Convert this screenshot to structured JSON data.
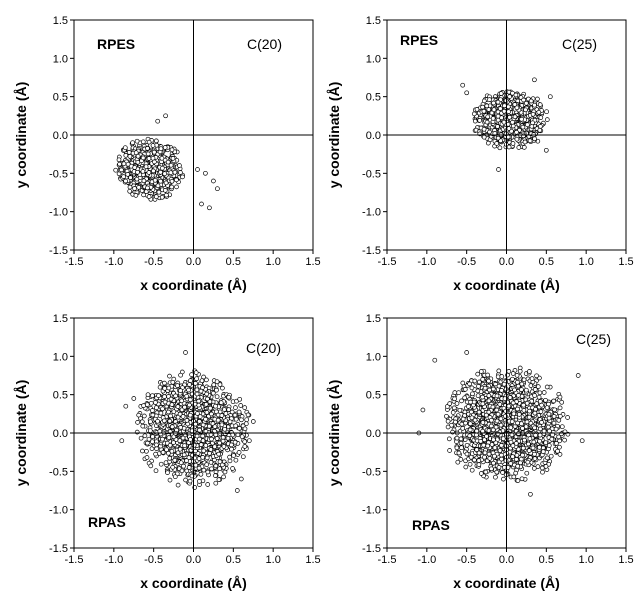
{
  "chart_data": [
    {
      "type": "scatter",
      "xlabel": "x coordinate (Å)",
      "ylabel": "y coordinate (Å)",
      "xlim": [
        -1.5,
        1.5
      ],
      "ylim": [
        -1.5,
        1.5
      ],
      "xticks": [
        "-1.5",
        "-1.0",
        "-0.5",
        "0.0",
        "0.5",
        "1.0",
        "1.5"
      ],
      "yticks": [
        "1.5",
        "1.0",
        "0.5",
        "0.0",
        "-0.5",
        "-1.0",
        "-1.5"
      ],
      "method_label": "RPES",
      "atom_label": "C(20)",
      "cloud": {
        "center": [
          -0.55,
          -0.45
        ],
        "spread": [
          0.18,
          0.17
        ],
        "count": 900
      },
      "outliers": [
        [
          0.1,
          -0.9
        ],
        [
          0.2,
          -0.95
        ],
        [
          0.25,
          -0.6
        ],
        [
          0.3,
          -0.7
        ],
        [
          0.15,
          -0.5
        ],
        [
          -0.35,
          0.25
        ],
        [
          -0.45,
          0.18
        ],
        [
          0.05,
          -0.45
        ]
      ]
    },
    {
      "type": "scatter",
      "xlabel": "x coordinate (Å)",
      "ylabel": "y coordinate (Å)",
      "xlim": [
        -1.5,
        1.5
      ],
      "ylim": [
        -1.5,
        1.5
      ],
      "xticks": [
        "-1.5",
        "-1.0",
        "-0.5",
        "0.0",
        "0.5",
        "1.0",
        "1.5"
      ],
      "yticks": [
        "1.5",
        "1.0",
        "0.5",
        "0.0",
        "-0.5",
        "-1.0",
        "-1.5"
      ],
      "method_label": "RPES",
      "atom_label": "C(25)",
      "cloud": {
        "center": [
          0.05,
          0.2
        ],
        "spread": [
          0.2,
          0.17
        ],
        "count": 1100
      },
      "outliers": [
        [
          -0.55,
          0.65
        ],
        [
          -0.5,
          0.55
        ],
        [
          0.35,
          0.72
        ],
        [
          0.5,
          -0.2
        ],
        [
          -0.1,
          -0.45
        ],
        [
          0.55,
          0.5
        ]
      ]
    },
    {
      "type": "scatter",
      "xlabel": "x coordinate (Å)",
      "ylabel": "y coordinate (Å)",
      "xlim": [
        -1.5,
        1.5
      ],
      "ylim": [
        -1.5,
        1.5
      ],
      "xticks": [
        "-1.5",
        "-1.0",
        "-0.5",
        "0.0",
        "0.5",
        "1.0",
        "1.5"
      ],
      "yticks": [
        "1.5",
        "1.0",
        "0.5",
        "0.0",
        "-0.5",
        "-1.0",
        "-1.5"
      ],
      "method_label": "RPAS",
      "atom_label": "C(20)",
      "cloud": {
        "center": [
          0.0,
          0.05
        ],
        "spread": [
          0.3,
          0.32
        ],
        "count": 1600
      },
      "outliers": [
        [
          -0.85,
          0.35
        ],
        [
          -0.75,
          0.45
        ],
        [
          0.75,
          0.15
        ],
        [
          0.7,
          -0.1
        ],
        [
          -0.1,
          1.05
        ],
        [
          -0.9,
          -0.1
        ],
        [
          0.6,
          -0.6
        ],
        [
          0.55,
          -0.75
        ]
      ]
    },
    {
      "type": "scatter",
      "xlabel": "x coordinate (Å)",
      "ylabel": "y coordinate (Å)",
      "xlim": [
        -1.5,
        1.5
      ],
      "ylim": [
        -1.5,
        1.5
      ],
      "xticks": [
        "-1.5",
        "-1.0",
        "-0.5",
        "0.0",
        "0.5",
        "1.0",
        "1.5"
      ],
      "yticks": [
        "1.5",
        "1.0",
        "0.5",
        "0.0",
        "-0.5",
        "-1.0",
        "-1.5"
      ],
      "method_label": "RPAS",
      "atom_label": "C(25)",
      "cloud": {
        "center": [
          0.0,
          0.1
        ],
        "spread": [
          0.33,
          0.32
        ],
        "count": 2000
      },
      "outliers": [
        [
          -0.9,
          0.95
        ],
        [
          -1.1,
          0.0
        ],
        [
          0.9,
          0.75
        ],
        [
          -1.05,
          0.3
        ],
        [
          0.95,
          -0.1
        ],
        [
          -0.5,
          1.05
        ],
        [
          0.3,
          -0.8
        ]
      ]
    }
  ]
}
